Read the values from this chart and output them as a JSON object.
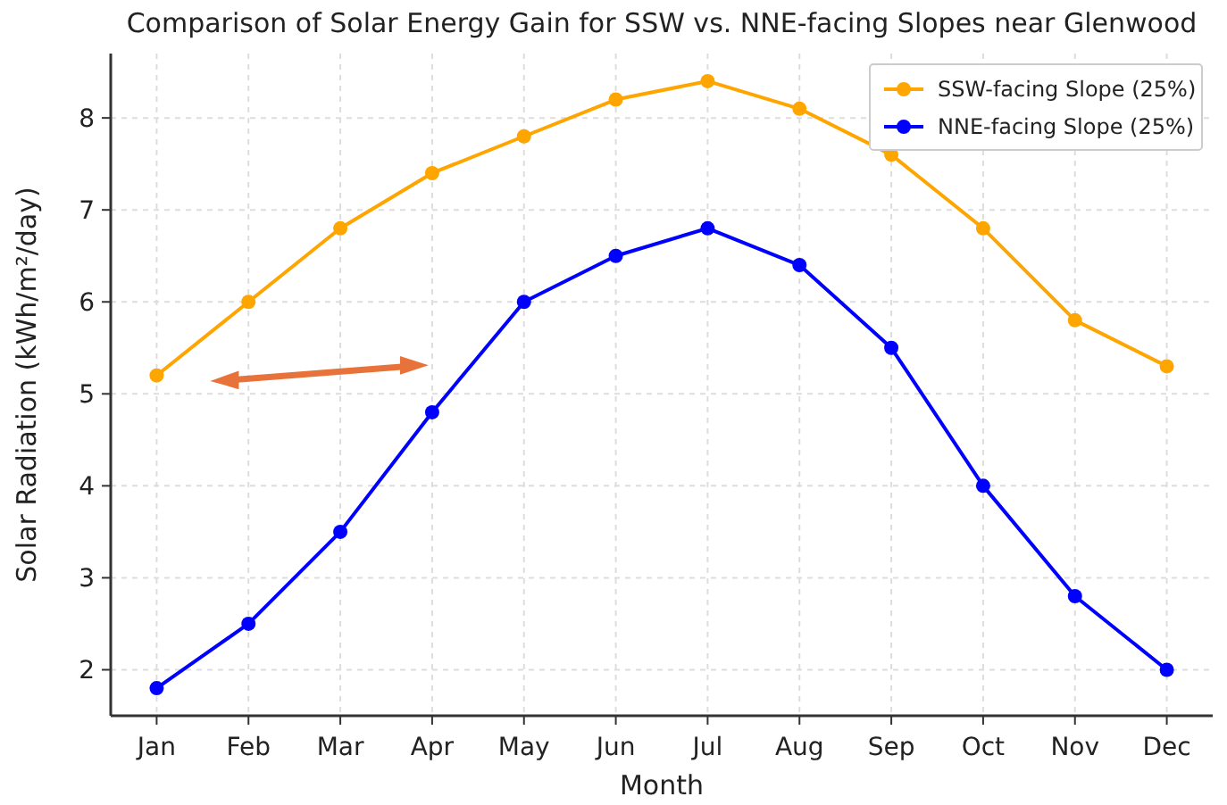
{
  "chart_data": {
    "type": "line",
    "title": "Comparison of Solar Energy Gain for SSW vs. NNE-facing Slopes near Glenwood",
    "xlabel": "Month",
    "ylabel": "Solar Radiation (kWh/m²/day)",
    "categories": [
      "Jan",
      "Feb",
      "Mar",
      "Apr",
      "May",
      "Jun",
      "Jul",
      "Aug",
      "Sep",
      "Oct",
      "Nov",
      "Dec"
    ],
    "series": [
      {
        "name": "SSW-facing Slope (25%)",
        "color": "#ffa500",
        "values": [
          5.2,
          6.0,
          6.8,
          7.4,
          7.8,
          8.2,
          8.4,
          8.1,
          7.6,
          6.8,
          5.8,
          5.3
        ]
      },
      {
        "name": "NNE-facing Slope (25%)",
        "color": "#0000ff",
        "values": [
          1.8,
          2.5,
          3.5,
          4.8,
          6.0,
          6.5,
          6.8,
          6.4,
          5.5,
          4.0,
          2.8,
          2.0
        ]
      }
    ],
    "ylim": [
      1.5,
      8.7
    ],
    "yticks": [
      2,
      3,
      4,
      5,
      6,
      7,
      8
    ],
    "grid": true,
    "legend": "top right",
    "marker": "circle",
    "line_style": "solid"
  }
}
